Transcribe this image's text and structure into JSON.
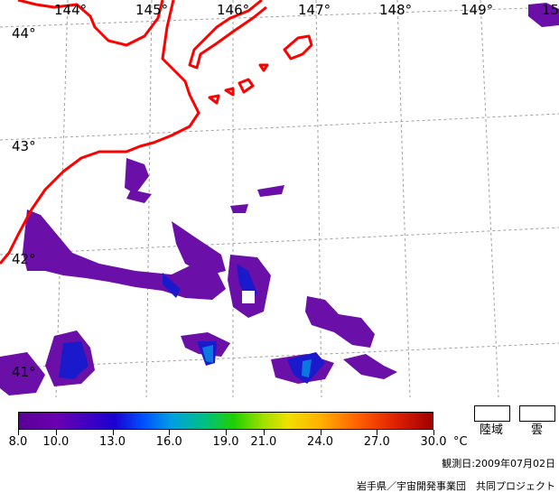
{
  "map": {
    "longitude_labels": [
      "144°",
      "145°",
      "146°",
      "147°",
      "148°",
      "149°",
      "15"
    ],
    "latitude_labels": [
      "44°",
      "43°",
      "42°",
      "41°"
    ],
    "colors": {
      "coastline": "#ff0000",
      "graticule": "#999999",
      "land_mask": "#ffffff",
      "sst_low": "#6a0fa8"
    }
  },
  "colorbar": {
    "unit": "°C",
    "tick_labels": [
      "8.0",
      "10.0",
      "13.0",
      "16.0",
      "19.0",
      "21.0",
      "24.0",
      "27.0",
      "30.0"
    ],
    "min": 8.0,
    "max": 30.0,
    "tick_values": [
      8.0,
      10.0,
      13.0,
      16.0,
      19.0,
      21.0,
      24.0,
      27.0,
      30.0
    ]
  },
  "legend": {
    "land_label": "陸域",
    "cloud_label": "雲"
  },
  "footer": {
    "observation_date": "観測日:2009年07月02日",
    "credit": "岩手県／宇宙開発事業団　共同プロジェクト"
  }
}
